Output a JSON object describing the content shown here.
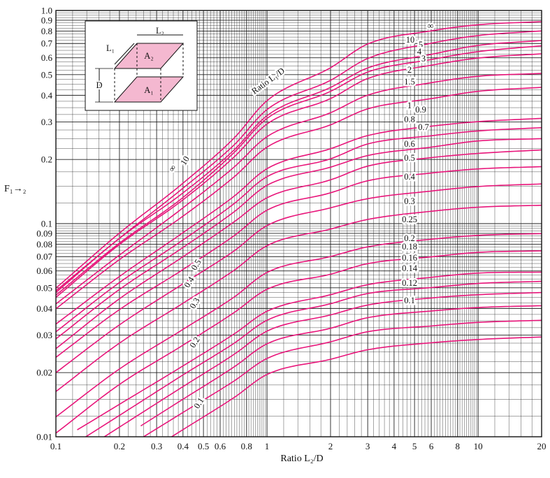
{
  "chart_data": {
    "type": "line",
    "xlabel": "Ratio L₂/D",
    "ylabel": "F₁→₂",
    "x_scale": "log",
    "y_scale": "log",
    "xlim": [
      0.1,
      20
    ],
    "ylim": [
      0.01,
      1.0
    ],
    "grid": true,
    "x_ticks": [
      0.1,
      0.2,
      0.3,
      0.4,
      0.5,
      0.6,
      0.8,
      1,
      2,
      3,
      4,
      5,
      6,
      8,
      10,
      20
    ],
    "x_tick_labels": [
      "0.1",
      "0.2",
      "0.3",
      "0.4",
      "0.5",
      "0.6",
      "0.8",
      "1",
      "2",
      "3",
      "4",
      "5",
      "6",
      "8",
      "10",
      "20"
    ],
    "y_ticks": [
      0.01,
      0.02,
      0.03,
      0.04,
      0.05,
      0.06,
      0.07,
      0.08,
      0.09,
      0.1,
      0.2,
      0.3,
      0.4,
      0.5,
      0.6,
      0.7,
      0.8,
      0.9,
      1.0
    ],
    "y_tick_labels": [
      "0.01",
      "0.02",
      "0.03",
      "0.04",
      "0.05",
      "0.06",
      "0.07",
      "0.08",
      "0.09",
      "0.1",
      "0.2",
      "0.3",
      "0.4",
      "0.5",
      "0.6",
      "0.7",
      "0.8",
      "0.9",
      "1.0"
    ],
    "curve_family_label": "Ratio L₁/D",
    "line_color": "#e8157a",
    "series": [
      {
        "name": "∞",
        "values": [
          0.0498,
          0.0903,
          0.1548,
          0.2527,
          0.3773,
          0.5389,
          0.6961,
          0.8024,
          0.8571,
          0.8863
        ]
      },
      {
        "name": "10",
        "values": [
          0.0484,
          0.0854,
          0.1467,
          0.2345,
          0.3428,
          0.4704,
          0.5953,
          0.7019,
          0.7628,
          0.8018
        ]
      },
      {
        "name": "5",
        "values": [
          0.0475,
          0.0853,
          0.1394,
          0.2221,
          0.321,
          0.4354,
          0.5374,
          0.6226,
          0.6856,
          0.7227
        ]
      },
      {
        "name": "4",
        "values": [
          0.0462,
          0.081,
          0.1326,
          0.2161,
          0.3115,
          0.4175,
          0.5141,
          0.5887,
          0.641,
          0.6829
        ]
      },
      {
        "name": "3",
        "values": [
          0.0451,
          0.0798,
          0.1293,
          0.2058,
          0.2933,
          0.3862,
          0.4794,
          0.5536,
          0.5981,
          0.6263
        ]
      },
      {
        "name": "2",
        "values": [
          0.042,
          0.0712,
          0.1186,
          0.1846,
          0.2558,
          0.3315,
          0.4006,
          0.4583,
          0.4912,
          0.5066
        ]
      },
      {
        "name": "1.5",
        "values": [
          0.0399,
          0.0678,
          0.1084,
          0.166,
          0.2285,
          0.2908,
          0.3454,
          0.3859,
          0.4176,
          0.4359
        ]
      },
      {
        "name": "1",
        "values": [
          0.0338,
          0.0565,
          0.0907,
          0.1347,
          0.181,
          0.2247,
          0.2589,
          0.2865,
          0.3009,
          0.3117
        ]
      },
      {
        "name": "0.9",
        "values": [
          0.0311,
          0.0529,
          0.0838,
          0.1243,
          0.1661,
          0.2014,
          0.2364,
          0.2584,
          0.2722,
          0.282
        ]
      },
      {
        "name": "0.8",
        "values": [
          0.0288,
          0.0491,
          0.0773,
          0.1138,
          0.1512,
          0.1841,
          0.2086,
          0.2285,
          0.2443,
          0.2504
        ]
      },
      {
        "name": "0.7",
        "values": [
          0.0259,
          0.0444,
          0.0699,
          0.1021,
          0.1322,
          0.1605,
          0.1861,
          0.204,
          0.2135,
          0.2217
        ]
      },
      {
        "name": "0.6",
        "values": [
          0.0236,
          0.0395,
          0.0609,
          0.0879,
          0.1156,
          0.1395,
          0.1589,
          0.1727,
          0.1806,
          0.185
        ]
      },
      {
        "name": "0.5",
        "values": [
          0.02,
          0.0335,
          0.0522,
          0.0746,
          0.0979,
          0.1186,
          0.1309,
          0.1422,
          0.1493,
          0.1535
        ]
      },
      {
        "name": "0.4",
        "values": [
          0.0163,
          0.0275,
          0.0423,
          0.0605,
          0.0788,
          0.0943,
          0.1046,
          0.1143,
          0.1194,
          0.122
        ]
      },
      {
        "name": "0.3",
        "values": [
          0.0124,
          0.0208,
          0.0319,
          0.0453,
          0.059,
          0.0701,
          0.0778,
          0.0845,
          0.0881,
          0.0898
        ]
      },
      {
        "name": "0.25",
        "values": [
          0.0104,
          0.0176,
          0.0269,
          0.0383,
          0.0492,
          0.0579,
          0.0649,
          0.0698,
          0.0733,
          0.0745
        ]
      },
      {
        "name": "0.2",
        "values": [
          null,
          0.0142,
          0.0215,
          0.0304,
          0.0388,
          0.0464,
          0.0517,
          0.056,
          0.0586,
          0.0592
        ]
      },
      {
        "name": "0.18",
        "values": [
          null,
          0.0126,
          0.0195,
          0.0275,
          0.0352,
          0.0421,
          0.047,
          0.0501,
          0.0524,
          0.0536
        ]
      },
      {
        "name": "0.16",
        "values": [
          null,
          0.0111,
          0.0172,
          0.0244,
          0.0313,
          0.0373,
          0.0415,
          0.0448,
          0.0464,
          0.0475
        ]
      },
      {
        "name": "0.14",
        "values": [
          null,
          null,
          0.015,
          0.0213,
          0.0273,
          0.0323,
          0.0362,
          0.0389,
          0.0404,
          0.0412
        ]
      },
      {
        "name": "0.12",
        "values": [
          null,
          null,
          0.013,
          0.0183,
          0.0233,
          0.0279,
          0.0311,
          0.0331,
          0.0344,
          0.0352
        ]
      },
      {
        "name": "0.1",
        "values": [
          null,
          null,
          0.0108,
          0.0153,
          0.0196,
          0.0231,
          0.0256,
          0.0276,
          0.0286,
          0.0294
        ]
      }
    ],
    "x": [
      0.1,
      0.2,
      0.4,
      0.7,
      1.0,
      2.0,
      3.0,
      6.0,
      10.0,
      20.0
    ],
    "right_labels": [
      "∞",
      "10",
      "5",
      "4",
      "3",
      "2",
      "1.5",
      "1",
      "0.9",
      "0.8",
      "0.7",
      "0.6",
      "0.5",
      "0.4",
      "0.3",
      "0.25",
      "0.2",
      "0.18",
      "0.16",
      "0.14",
      "0.12",
      "0.1"
    ],
    "diagonal_labels": [
      "∞",
      "10",
      "0.5",
      "0.4",
      "0.3",
      "0.2",
      "0.1"
    ],
    "inset": {
      "labels": [
        "L₂",
        "L₁",
        "A₂",
        "A₁",
        "D"
      ],
      "plate_color": "#f4b8d0"
    }
  }
}
